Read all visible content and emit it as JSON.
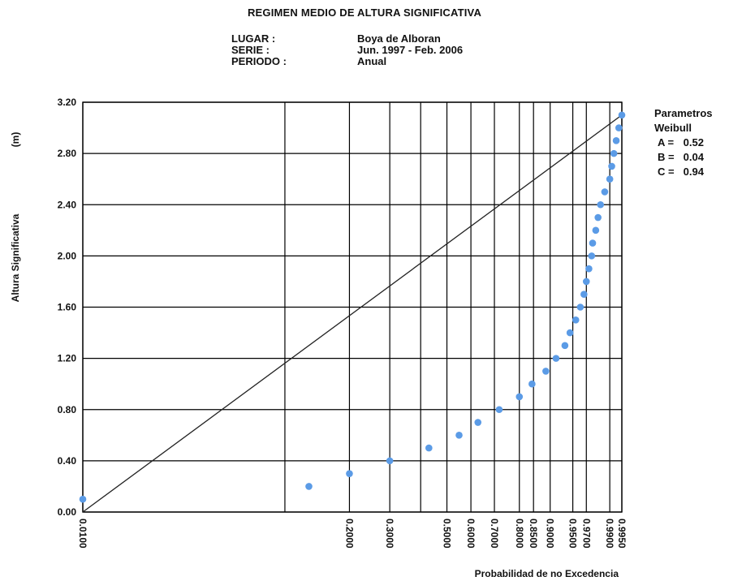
{
  "title": "REGIMEN MEDIO DE ALTURA SIGNIFICATIVA",
  "meta": {
    "labels": [
      "LUGAR :",
      "SERIE :",
      "PERIODO :"
    ],
    "values": [
      "Boya de Alboran",
      "Jun. 1997 - Feb. 2006",
      "Anual"
    ]
  },
  "params": {
    "title_line1": "Parametros",
    "title_line2": "Weibull",
    "rows": [
      {
        "key": "A =",
        "value": "0.52"
      },
      {
        "key": "B =",
        "value": "0.04"
      },
      {
        "key": "C =",
        "value": "0.94"
      }
    ]
  },
  "chart_data": {
    "type": "scatter",
    "title": "REGIMEN MEDIO DE ALTURA SIGNIFICATIVA",
    "xlabel": "Probabilidad de no Excedencia",
    "ylabel": "Altura Significativa",
    "ylabel_unit": "(m)",
    "x_scale": "weibull-probability",
    "x_ticks": [
      "0.0100",
      "0.2000",
      "0.3000",
      "0.5000",
      "0.6000",
      "0.7000",
      "0.8000",
      "0.8500",
      "0.9000",
      "0.9500",
      "0.9700",
      "0.9900",
      "0.9950"
    ],
    "x_minor_ticks": [
      "0.1000",
      "0.4000"
    ],
    "y_ticks": [
      "0.00",
      "0.40",
      "0.80",
      "1.20",
      "1.60",
      "2.00",
      "2.40",
      "2.80",
      "3.20"
    ],
    "ylim": [
      0,
      3.2
    ],
    "grid": true,
    "colors": {
      "points": "#5b9be6",
      "fit_line": "#222222",
      "grid": "#000000"
    },
    "fit_line": {
      "from": [
        0.01,
        0.0
      ],
      "to": [
        0.995,
        3.1
      ]
    },
    "points": [
      {
        "p": 0.01,
        "h": 0.1
      },
      {
        "p": 0.13,
        "h": 0.2
      },
      {
        "p": 0.2,
        "h": 0.3
      },
      {
        "p": 0.3,
        "h": 0.4
      },
      {
        "p": 0.43,
        "h": 0.5
      },
      {
        "p": 0.55,
        "h": 0.6
      },
      {
        "p": 0.63,
        "h": 0.7
      },
      {
        "p": 0.72,
        "h": 0.8
      },
      {
        "p": 0.8,
        "h": 0.9
      },
      {
        "p": 0.845,
        "h": 1.0
      },
      {
        "p": 0.888,
        "h": 1.1
      },
      {
        "p": 0.915,
        "h": 1.2
      },
      {
        "p": 0.935,
        "h": 1.3
      },
      {
        "p": 0.945,
        "h": 1.4
      },
      {
        "p": 0.955,
        "h": 1.5
      },
      {
        "p": 0.962,
        "h": 1.6
      },
      {
        "p": 0.967,
        "h": 1.7
      },
      {
        "p": 0.97,
        "h": 1.8
      },
      {
        "p": 0.973,
        "h": 1.9
      },
      {
        "p": 0.976,
        "h": 2.0
      },
      {
        "p": 0.977,
        "h": 2.1
      },
      {
        "p": 0.98,
        "h": 2.2
      },
      {
        "p": 0.982,
        "h": 2.3
      },
      {
        "p": 0.984,
        "h": 2.4
      },
      {
        "p": 0.987,
        "h": 2.5
      },
      {
        "p": 0.99,
        "h": 2.6
      },
      {
        "p": 0.991,
        "h": 2.7
      },
      {
        "p": 0.992,
        "h": 2.8
      },
      {
        "p": 0.993,
        "h": 2.9
      },
      {
        "p": 0.994,
        "h": 3.0
      },
      {
        "p": 0.995,
        "h": 3.1
      }
    ]
  }
}
